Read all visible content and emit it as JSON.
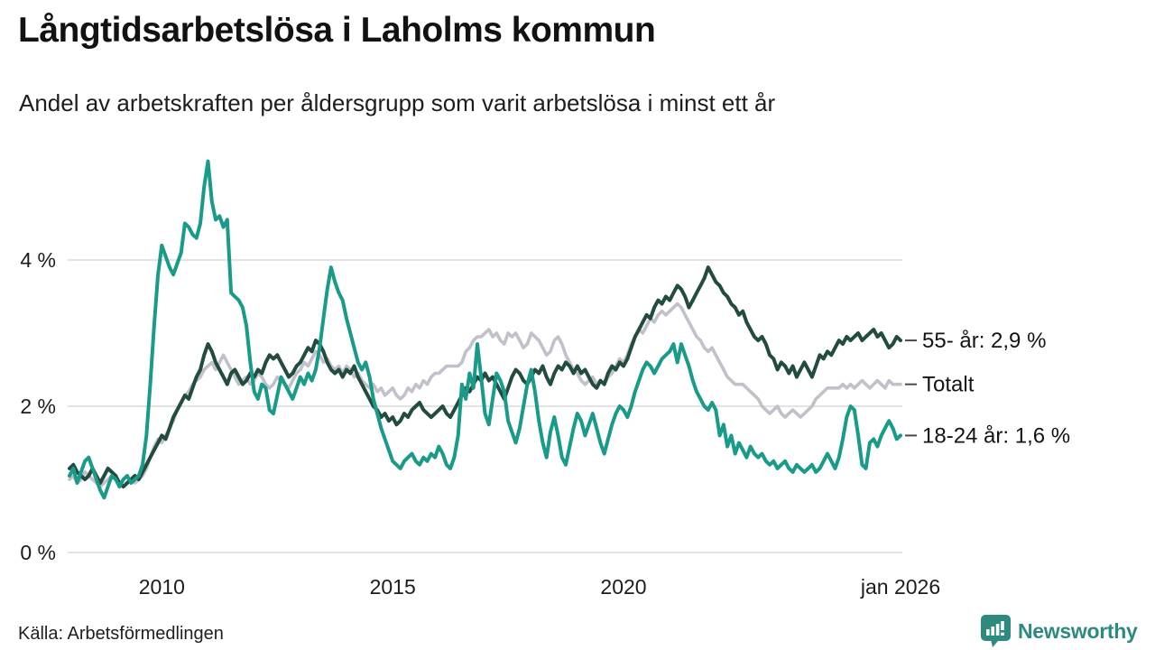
{
  "header": {
    "title": "Långtidsarbetslösa i Laholms kommun",
    "subtitle": "Andel av arbetskraften per åldersgrupp som varit arbetslösa i minst ett år"
  },
  "footer": {
    "source": "Källa: Arbetsförmedlingen",
    "brand": "Newsworthy",
    "brand_color": "#2e8a7e"
  },
  "chart_data": {
    "type": "line",
    "title": "Långtidsarbetslösa i Laholms kommun",
    "subtitle": "Andel av arbetskraften per åldersgrupp som varit arbetslösa i minst ett år",
    "x_range": [
      2008.0,
      2026.0
    ],
    "points_per_year": 12,
    "ylim": [
      0,
      5.6
    ],
    "grid": "horizontal-only",
    "grid_color": "#e3e3e5",
    "legend_position": "right-of-line-ends",
    "x_ticks": [
      {
        "label": "2010",
        "year": 2010
      },
      {
        "label": "2015",
        "year": 2015
      },
      {
        "label": "2020",
        "year": 2020
      },
      {
        "label": "jan 2026",
        "year": 2026
      }
    ],
    "y_ticks": [
      {
        "label": "0 %",
        "value": 0
      },
      {
        "label": "2 %",
        "value": 2
      },
      {
        "label": "4 %",
        "value": 4
      }
    ],
    "draw_order": [
      "Totalt",
      "55- år",
      "18-24 år"
    ],
    "series": [
      {
        "name": "55- år",
        "label": "55- år: 2,9 %",
        "last_value_label": "2,9 %",
        "color": "#234c40",
        "width": 4,
        "values": [
          1.15,
          1.2,
          1.1,
          1.05,
          1.0,
          1.05,
          1.15,
          1.05,
          0.95,
          1.05,
          1.15,
          1.1,
          1.05,
          0.95,
          0.9,
          0.95,
          1.0,
          1.05,
          1.0,
          1.1,
          1.2,
          1.3,
          1.4,
          1.5,
          1.6,
          1.55,
          1.7,
          1.85,
          1.95,
          2.05,
          2.15,
          2.1,
          2.25,
          2.4,
          2.5,
          2.7,
          2.85,
          2.75,
          2.6,
          2.5,
          2.4,
          2.3,
          2.45,
          2.5,
          2.4,
          2.3,
          2.35,
          2.45,
          2.4,
          2.5,
          2.45,
          2.6,
          2.7,
          2.65,
          2.7,
          2.6,
          2.5,
          2.4,
          2.45,
          2.55,
          2.6,
          2.7,
          2.8,
          2.75,
          2.9,
          2.85,
          2.75,
          2.6,
          2.5,
          2.45,
          2.5,
          2.4,
          2.5,
          2.45,
          2.55,
          2.4,
          2.3,
          2.2,
          2.1,
          2.0,
          1.95,
          1.85,
          1.9,
          1.8,
          1.85,
          1.75,
          1.8,
          1.9,
          1.85,
          1.95,
          2.0,
          2.05,
          1.95,
          1.9,
          1.85,
          1.9,
          1.95,
          2.0,
          1.9,
          1.85,
          1.95,
          2.05,
          2.15,
          2.25,
          2.2,
          2.3,
          2.4,
          2.35,
          2.45,
          2.35,
          2.4,
          2.3,
          2.2,
          2.1,
          2.25,
          2.4,
          2.5,
          2.45,
          2.35,
          2.3,
          2.4,
          2.5,
          2.45,
          2.55,
          2.4,
          2.3,
          2.45,
          2.55,
          2.5,
          2.6,
          2.55,
          2.45,
          2.55,
          2.45,
          2.5,
          2.4,
          2.3,
          2.25,
          2.35,
          2.3,
          2.45,
          2.55,
          2.5,
          2.6,
          2.55,
          2.65,
          2.8,
          2.95,
          3.05,
          3.15,
          3.25,
          3.2,
          3.35,
          3.45,
          3.4,
          3.5,
          3.45,
          3.55,
          3.65,
          3.6,
          3.5,
          3.35,
          3.45,
          3.55,
          3.65,
          3.75,
          3.9,
          3.8,
          3.7,
          3.65,
          3.55,
          3.5,
          3.4,
          3.35,
          3.25,
          3.3,
          3.15,
          3.05,
          2.95,
          2.9,
          2.95,
          2.85,
          2.7,
          2.65,
          2.5,
          2.6,
          2.55,
          2.45,
          2.55,
          2.4,
          2.5,
          2.6,
          2.5,
          2.4,
          2.55,
          2.7,
          2.65,
          2.75,
          2.7,
          2.8,
          2.9,
          2.85,
          2.95,
          2.9,
          2.95,
          3.0,
          2.9,
          2.95,
          3.0,
          3.05,
          2.95,
          3.0,
          2.9,
          2.8,
          2.85,
          2.95,
          2.9
        ]
      },
      {
        "name": "Totalt",
        "label": "Totalt",
        "last_value_label": "",
        "color": "#c1c0cb",
        "width": 3.6,
        "values": [
          1.0,
          1.05,
          0.95,
          1.0,
          1.1,
          1.05,
          1.0,
          0.95,
          0.9,
          0.95,
          1.0,
          1.05,
          1.0,
          0.95,
          0.9,
          0.95,
          1.0,
          0.95,
          1.0,
          1.05,
          1.15,
          1.3,
          1.45,
          1.55,
          1.5,
          1.6,
          1.7,
          1.8,
          1.95,
          2.05,
          2.15,
          2.2,
          2.3,
          2.35,
          2.4,
          2.5,
          2.55,
          2.6,
          2.5,
          2.6,
          2.7,
          2.6,
          2.5,
          2.4,
          2.3,
          2.35,
          2.4,
          2.3,
          2.35,
          2.45,
          2.4,
          2.3,
          2.25,
          2.3,
          2.4,
          2.35,
          2.3,
          2.25,
          2.35,
          2.45,
          2.5,
          2.6,
          2.55,
          2.65,
          2.75,
          2.7,
          2.6,
          2.65,
          2.55,
          2.5,
          2.55,
          2.45,
          2.55,
          2.5,
          2.4,
          2.45,
          2.35,
          2.3,
          2.25,
          2.3,
          2.2,
          2.25,
          2.15,
          2.2,
          2.25,
          2.15,
          2.1,
          2.15,
          2.25,
          2.2,
          2.3,
          2.25,
          2.35,
          2.3,
          2.4,
          2.45,
          2.45,
          2.5,
          2.55,
          2.55,
          2.55,
          2.55,
          2.6,
          2.75,
          2.8,
          2.9,
          2.95,
          2.95,
          3.0,
          3.05,
          2.95,
          3.0,
          2.9,
          2.85,
          3.0,
          2.95,
          3.0,
          2.9,
          2.8,
          2.85,
          3.0,
          2.95,
          2.9,
          2.8,
          2.7,
          2.75,
          2.9,
          2.95,
          2.85,
          2.7,
          2.6,
          2.5,
          2.45,
          2.35,
          2.3,
          2.35,
          2.4,
          2.3,
          2.35,
          2.3,
          2.4,
          2.45,
          2.55,
          2.65,
          2.6,
          2.7,
          2.85,
          2.95,
          3.05,
          3.0,
          3.1,
          3.2,
          3.15,
          3.25,
          3.3,
          3.25,
          3.3,
          3.35,
          3.4,
          3.35,
          3.25,
          3.15,
          3.05,
          2.95,
          2.9,
          2.8,
          2.75,
          2.8,
          2.7,
          2.6,
          2.5,
          2.4,
          2.35,
          2.3,
          2.3,
          2.3,
          2.25,
          2.2,
          2.15,
          2.1,
          2.0,
          1.95,
          1.9,
          1.95,
          2.0,
          1.9,
          1.85,
          1.9,
          1.95,
          1.9,
          1.85,
          1.9,
          1.95,
          2.0,
          2.1,
          2.15,
          2.2,
          2.25,
          2.25,
          2.25,
          2.25,
          2.3,
          2.25,
          2.3,
          2.25,
          2.3,
          2.35,
          2.3,
          2.25,
          2.3,
          2.35,
          2.3,
          2.25,
          2.35,
          2.3,
          2.3,
          2.3
        ]
      },
      {
        "name": "18-24 år",
        "label": "18-24 år: 1,6 %",
        "last_value_label": "1,6 %",
        "color": "#1a9b8a",
        "width": 4,
        "values": [
          1.05,
          1.15,
          0.95,
          1.1,
          1.25,
          1.3,
          1.15,
          1.0,
          0.85,
          0.75,
          0.9,
          1.05,
          1.0,
          0.9,
          1.0,
          1.05,
          0.95,
          1.0,
          1.05,
          1.2,
          1.6,
          2.3,
          3.1,
          3.8,
          4.2,
          4.05,
          3.9,
          3.8,
          3.95,
          4.1,
          4.5,
          4.45,
          4.35,
          4.3,
          4.5,
          5.0,
          5.35,
          4.8,
          4.55,
          4.6,
          4.45,
          4.55,
          3.55,
          3.5,
          3.45,
          3.35,
          3.1,
          2.6,
          2.2,
          2.1,
          2.3,
          2.25,
          1.95,
          1.9,
          2.15,
          2.4,
          2.3,
          2.2,
          2.1,
          2.25,
          2.4,
          2.3,
          2.45,
          2.35,
          2.5,
          2.8,
          3.2,
          3.6,
          3.9,
          3.7,
          3.55,
          3.45,
          3.2,
          3.0,
          2.8,
          2.6,
          2.5,
          2.6,
          2.4,
          2.1,
          1.9,
          1.7,
          1.55,
          1.4,
          1.25,
          1.2,
          1.15,
          1.25,
          1.3,
          1.35,
          1.25,
          1.2,
          1.3,
          1.25,
          1.35,
          1.3,
          1.45,
          1.35,
          1.2,
          1.15,
          1.3,
          1.6,
          2.3,
          2.1,
          2.45,
          2.25,
          2.85,
          2.4,
          1.9,
          1.75,
          2.1,
          2.45,
          2.35,
          2.2,
          1.8,
          1.65,
          1.5,
          1.7,
          2.0,
          2.3,
          2.5,
          2.2,
          1.8,
          1.5,
          1.3,
          1.65,
          1.85,
          1.6,
          1.3,
          1.2,
          1.45,
          1.7,
          1.9,
          1.8,
          1.6,
          1.75,
          1.9,
          1.7,
          1.5,
          1.35,
          1.55,
          1.75,
          1.9,
          2.0,
          1.95,
          1.85,
          2.0,
          2.2,
          2.35,
          2.5,
          2.6,
          2.55,
          2.45,
          2.55,
          2.65,
          2.7,
          2.75,
          2.85,
          2.6,
          2.85,
          2.7,
          2.55,
          2.35,
          2.2,
          2.1,
          2.0,
          1.95,
          2.05,
          1.95,
          1.6,
          1.75,
          1.45,
          1.6,
          1.35,
          1.5,
          1.4,
          1.3,
          1.45,
          1.35,
          1.3,
          1.35,
          1.25,
          1.2,
          1.25,
          1.15,
          1.2,
          1.25,
          1.15,
          1.1,
          1.2,
          1.15,
          1.1,
          1.15,
          1.2,
          1.1,
          1.15,
          1.25,
          1.35,
          1.25,
          1.15,
          1.3,
          1.55,
          1.85,
          2.0,
          1.95,
          1.6,
          1.2,
          1.15,
          1.5,
          1.55,
          1.45,
          1.6,
          1.7,
          1.8,
          1.7,
          1.55,
          1.6
        ]
      }
    ]
  }
}
